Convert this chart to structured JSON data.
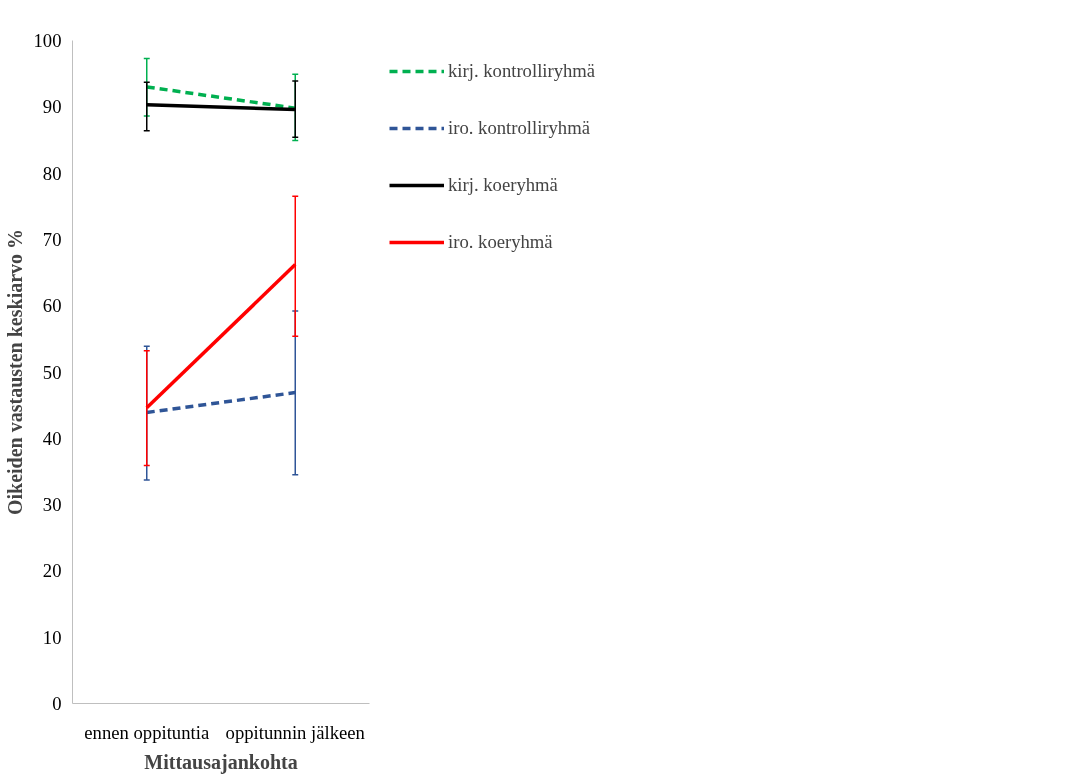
{
  "chart_data": {
    "type": "line",
    "xlabel": "Mittausajankohta",
    "ylabel": "Oikeiden vastausten keskiarvo %",
    "categories": [
      "ennen oppituntia",
      "oppitunnin jälkeen"
    ],
    "ylim": [
      0,
      100
    ],
    "yticks": [
      0,
      10,
      20,
      30,
      40,
      50,
      60,
      70,
      80,
      90,
      100
    ],
    "grid": false,
    "legend": "right",
    "marker": "none",
    "series": [
      {
        "name": "kirj. kontrolliryhmä",
        "color": "#00b050",
        "line_style": "dashed",
        "values": [
          93.0,
          89.8
        ],
        "errors": [
          [
            88.6,
            97.3
          ],
          [
            84.9,
            94.9
          ]
        ]
      },
      {
        "name": "iro. kontrolliryhmä",
        "color": "#2f5597",
        "line_style": "dashed",
        "values": [
          43.9,
          46.9
        ],
        "errors": [
          [
            33.7,
            53.9
          ],
          [
            34.5,
            59.2
          ]
        ]
      },
      {
        "name": "kirj. koeryhmä",
        "color": "#000000",
        "line_style": "solid",
        "values": [
          90.3,
          89.6
        ],
        "errors": [
          [
            86.4,
            93.7
          ],
          [
            85.4,
            93.9
          ]
        ]
      },
      {
        "name": "iro. koeryhmä",
        "color": "#ff0000",
        "line_style": "solid",
        "values": [
          44.6,
          66.2
        ],
        "errors": [
          [
            35.9,
            53.2
          ],
          [
            55.4,
            76.5
          ]
        ]
      }
    ]
  }
}
